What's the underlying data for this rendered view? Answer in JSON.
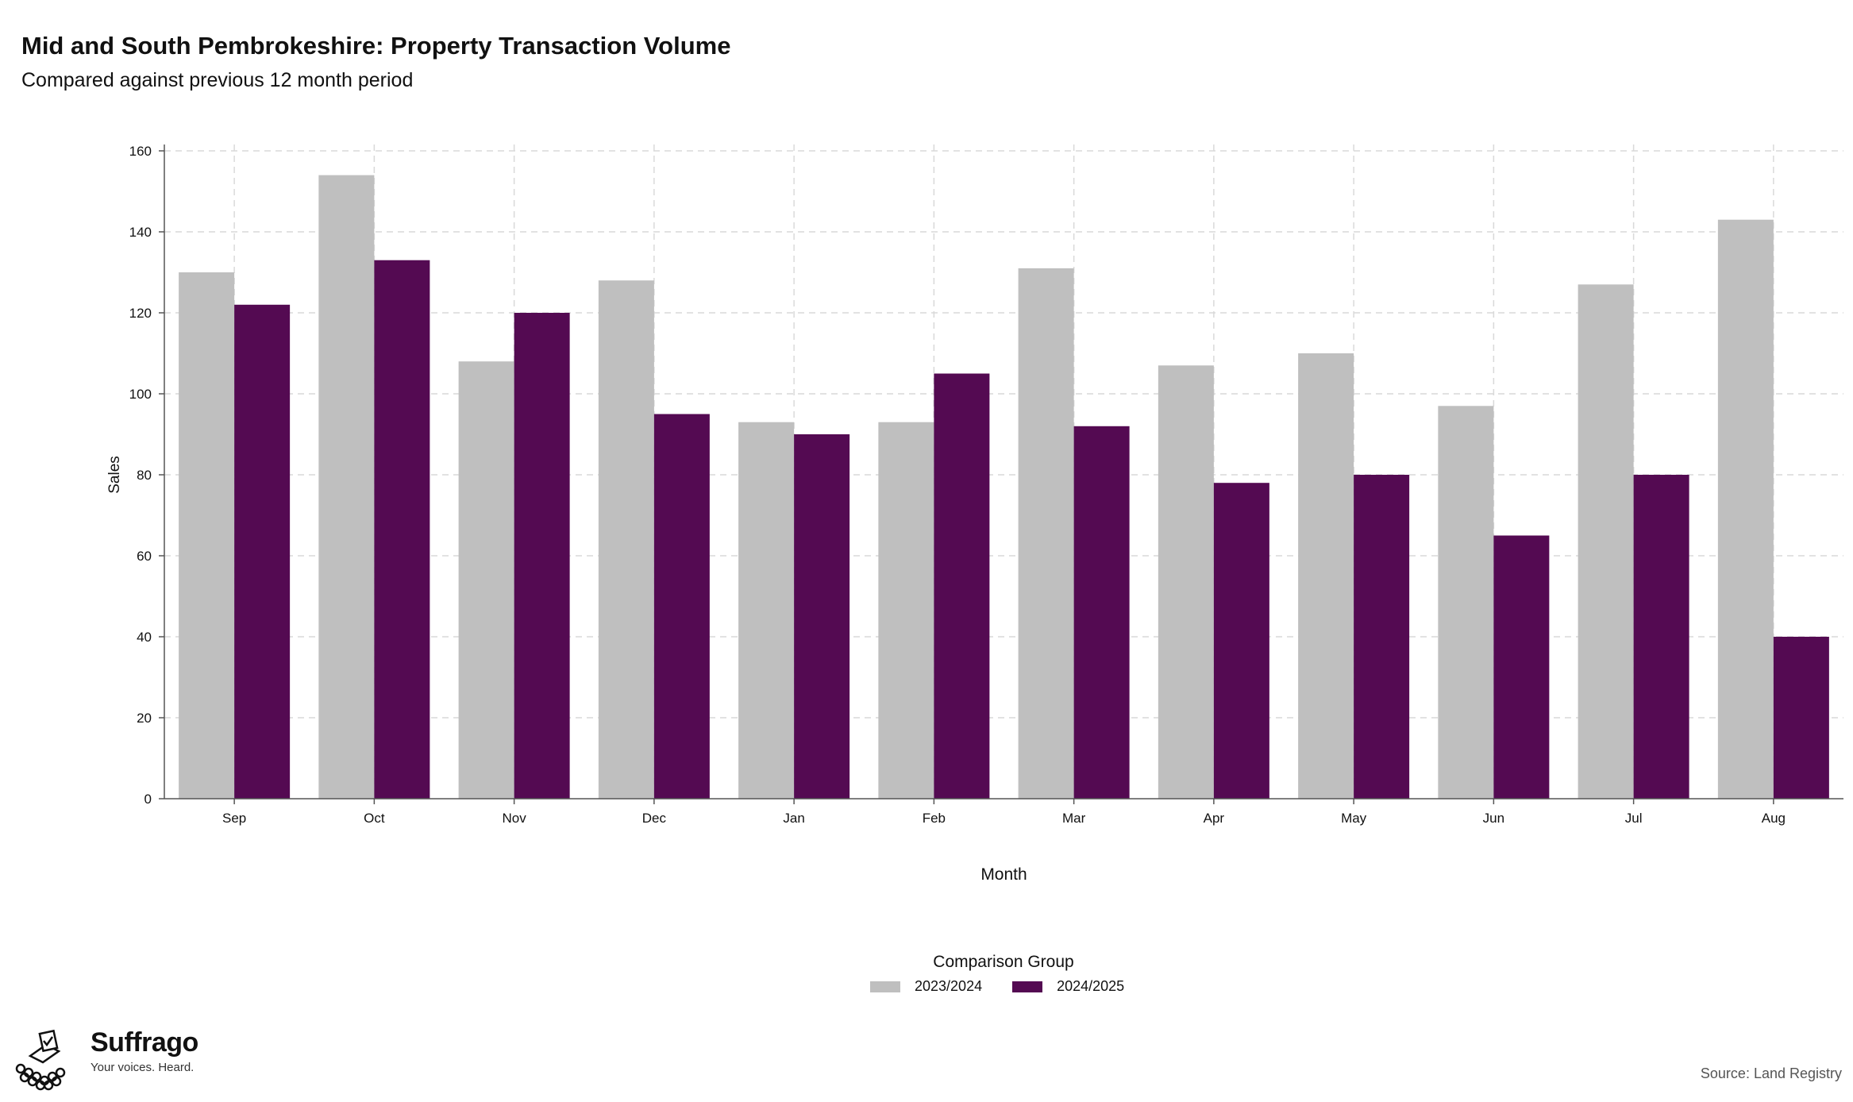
{
  "header": {
    "title": "Mid and South Pembrokeshire: Property Transaction Volume",
    "subtitle": "Compared against previous 12 month period"
  },
  "chart_data": {
    "type": "bar",
    "categories": [
      "Sep",
      "Oct",
      "Nov",
      "Dec",
      "Jan",
      "Feb",
      "Mar",
      "Apr",
      "May",
      "Jun",
      "Jul",
      "Aug"
    ],
    "series": [
      {
        "name": "2023/2024",
        "color": "#bfbfbf",
        "values": [
          130,
          154,
          108,
          128,
          93,
          93,
          131,
          107,
          110,
          97,
          127,
          143
        ]
      },
      {
        "name": "2024/2025",
        "color": "#540a52",
        "values": [
          122,
          133,
          120,
          95,
          90,
          105,
          92,
          78,
          80,
          65,
          80,
          40
        ]
      }
    ],
    "xlabel": "Month",
    "ylabel": "Sales",
    "ylim": [
      0,
      160
    ],
    "yticks": [
      0,
      20,
      40,
      60,
      80,
      100,
      120,
      140,
      160
    ],
    "grid": true,
    "legend_title": "Comparison Group",
    "legend_position": "bottom"
  },
  "footer": {
    "brand": "Suffrago",
    "tagline": "Your voices. Heard.",
    "source": "Source: Land Registry"
  }
}
